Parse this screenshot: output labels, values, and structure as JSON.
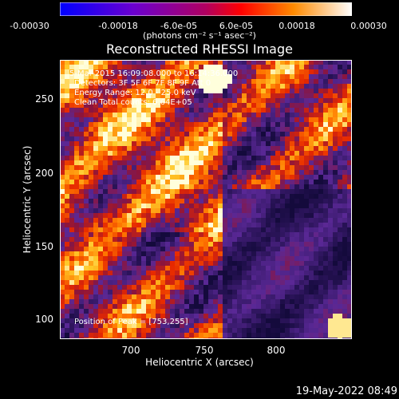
{
  "colorbar": {
    "tick_labels": [
      "-0.00030",
      "-0.00018",
      "-6.0e-05",
      "6.0e-05",
      "0.00018",
      "0.00030"
    ],
    "units": "(photons cm⁻² s⁻¹ asec⁻²)",
    "colors": [
      "#0000ff",
      "#6a00d0",
      "#b00060",
      "#ff0000",
      "#ff8a00",
      "#ffffff"
    ]
  },
  "title": "Reconstructed RHESSI Image",
  "annotations": {
    "time_range": "5-Mar-2015 16:09:08.000 to 16:14:36.000",
    "detectors": "Detectors: 3F 5F 6F 7F 8F 9F  Att 0",
    "energy": "Energy Range: 12.0 - 25.0 keV",
    "clean": "Clean    Total counts: 6.64E+05",
    "peak": "Position of Peak = [753,255]"
  },
  "chart_data": {
    "type": "heatmap",
    "title": "Reconstructed RHESSI Image",
    "xlabel": "Heliocentric X (arcsec)",
    "ylabel": "Heliocentric Y (arcsec)",
    "xlim": [
      656,
      840
    ],
    "ylim": [
      86,
      273
    ],
    "xticks": [
      700,
      750,
      800
    ],
    "yticks": [
      100,
      150,
      200,
      250
    ],
    "value_range": [
      -0.0003,
      0.0003
    ],
    "peak_position": [
      753,
      255
    ],
    "colormap": "blue-purple-red-orange-white"
  },
  "footer": {
    "date": "19-May-2022 08:49"
  }
}
